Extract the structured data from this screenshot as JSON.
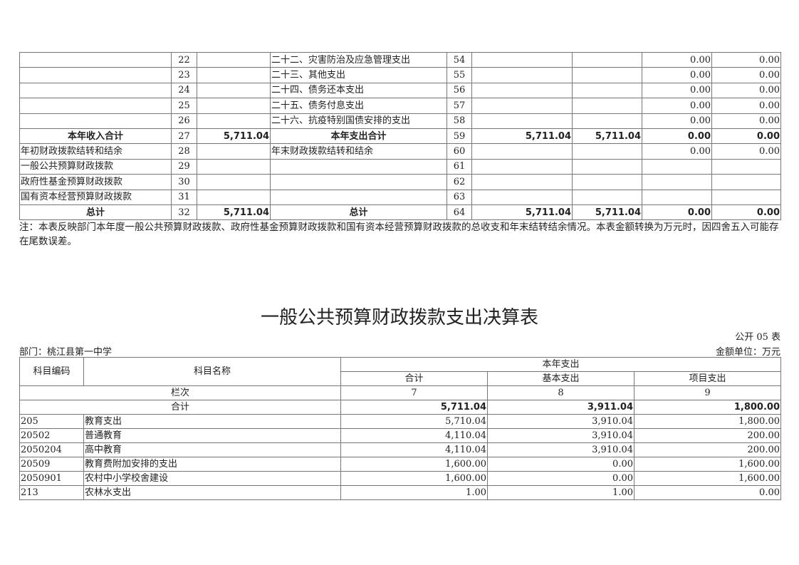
{
  "top_table": {
    "rows": [
      {
        "income_item": "",
        "income_no": "22",
        "income_amount": "",
        "exp_item": "二十二、灾害防治及应急管理支出",
        "exp_no": "54",
        "total": "",
        "gp": "",
        "gf": "0.00",
        "sc": "0.00",
        "bold": false
      },
      {
        "income_item": "",
        "income_no": "23",
        "income_amount": "",
        "exp_item": "二十三、其他支出",
        "exp_no": "55",
        "total": "",
        "gp": "",
        "gf": "0.00",
        "sc": "0.00",
        "bold": false
      },
      {
        "income_item": "",
        "income_no": "24",
        "income_amount": "",
        "exp_item": "二十四、债务还本支出",
        "exp_no": "56",
        "total": "",
        "gp": "",
        "gf": "0.00",
        "sc": "0.00",
        "bold": false
      },
      {
        "income_item": "",
        "income_no": "25",
        "income_amount": "",
        "exp_item": "二十五、债务付息支出",
        "exp_no": "57",
        "total": "",
        "gp": "",
        "gf": "0.00",
        "sc": "0.00",
        "bold": false
      },
      {
        "income_item": "",
        "income_no": "26",
        "income_amount": "",
        "exp_item": "二十六、抗疫特别国债安排的支出",
        "exp_no": "58",
        "total": "",
        "gp": "",
        "gf": "0.00",
        "sc": "0.00",
        "bold": false
      },
      {
        "income_item": "本年收入合计",
        "income_no": "27",
        "income_amount": "5,711.04",
        "exp_item": "本年支出合计",
        "exp_no": "59",
        "total": "5,711.04",
        "gp": "5,711.04",
        "gf": "0.00",
        "sc": "0.00",
        "bold": true
      },
      {
        "income_item": "年初财政拨款结转和结余",
        "income_no": "28",
        "income_amount": "",
        "exp_item": "年末财政拨款结转和结余",
        "exp_no": "60",
        "total": "",
        "gp": "",
        "gf": "0.00",
        "sc": "0.00",
        "bold": false
      },
      {
        "income_item": "一般公共预算财政拨款",
        "income_no": "29",
        "income_amount": "",
        "exp_item": "",
        "exp_no": "61",
        "total": "",
        "gp": "",
        "gf": "",
        "sc": "",
        "bold": false
      },
      {
        "income_item": "政府性基金预算财政拨款",
        "income_no": "30",
        "income_amount": "",
        "exp_item": "",
        "exp_no": "62",
        "total": "",
        "gp": "",
        "gf": "",
        "sc": "",
        "bold": false
      },
      {
        "income_item": "国有资本经营预算财政拨款",
        "income_no": "31",
        "income_amount": "",
        "exp_item": "",
        "exp_no": "63",
        "total": "",
        "gp": "",
        "gf": "",
        "sc": "",
        "bold": false
      },
      {
        "income_item": "总计",
        "income_no": "32",
        "income_amount": "5,711.04",
        "exp_item": "总计",
        "exp_no": "64",
        "total": "5,711.04",
        "gp": "5,711.04",
        "gf": "0.00",
        "sc": "0.00",
        "bold": true
      }
    ],
    "note": "注：本表反映部门本年度一般公共预算财政拨款、政府性基金预算财政拨款和国有资本经营预算财政拨款的总收支和年末结转结余情况。本表金额转换为万元时，因四舍五入可能存在尾数误差。"
  },
  "second": {
    "title": "一般公共预算财政拨款支出决算表",
    "form_no": "公开 05 表",
    "department": "部门：桃江县第一中学",
    "unit": "金额单位：万元",
    "headers": {
      "code": "科目编码",
      "name": "科目名称",
      "current": "本年支出",
      "total": "合计",
      "basic": "基本支出",
      "project": "项目支出",
      "col_label": "栏次",
      "c7": "7",
      "c8": "8",
      "c9": "9"
    },
    "sum_row": {
      "label": "合计",
      "total": "5,711.04",
      "basic": "3,911.04",
      "project": "1,800.00"
    },
    "rows": [
      {
        "code": "205",
        "name": "教育支出",
        "total": "5,710.04",
        "basic": "3,910.04",
        "project": "1,800.00"
      },
      {
        "code": "20502",
        "name": "普通教育",
        "total": "4,110.04",
        "basic": "3,910.04",
        "project": "200.00"
      },
      {
        "code": "2050204",
        "name": "高中教育",
        "total": "4,110.04",
        "basic": "3,910.04",
        "project": "200.00"
      },
      {
        "code": "20509",
        "name": "教育费附加安排的支出",
        "total": "1,600.00",
        "basic": "0.00",
        "project": "1,600.00"
      },
      {
        "code": "2050901",
        "name": "农村中小学校舍建设",
        "total": "1,600.00",
        "basic": "0.00",
        "project": "1,600.00"
      },
      {
        "code": "213",
        "name": "农林水支出",
        "total": "1.00",
        "basic": "1.00",
        "project": "0.00"
      }
    ]
  }
}
